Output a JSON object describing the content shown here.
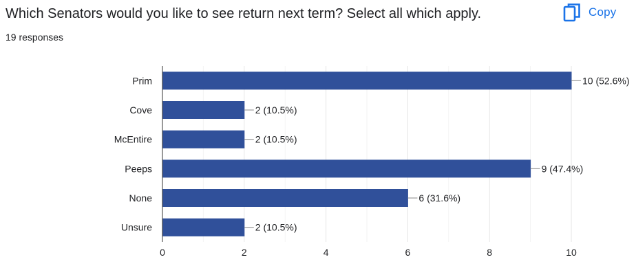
{
  "question": {
    "title": "Which Senators would you like to see return next term? Select all which apply.",
    "responses": "19 responses"
  },
  "copy": {
    "label": "Copy",
    "icon": "copy-icon",
    "color": "#1a73e8"
  },
  "chart_data": {
    "type": "bar",
    "orientation": "horizontal",
    "categories": [
      "Prim",
      "Cove",
      "McEntire",
      "Peeps",
      "None",
      "Unsure"
    ],
    "values": [
      10,
      2,
      2,
      9,
      6,
      2
    ],
    "data_labels": [
      "10 (52.6%)",
      "2 (10.5%)",
      "2 (10.5%)",
      "9 (47.4%)",
      "6 (31.6%)",
      "2 (10.5%)"
    ],
    "xlim": [
      0,
      10
    ],
    "x_ticks": [
      0,
      2,
      4,
      6,
      8,
      10
    ],
    "grid": true,
    "bar_color": "#30509a"
  }
}
